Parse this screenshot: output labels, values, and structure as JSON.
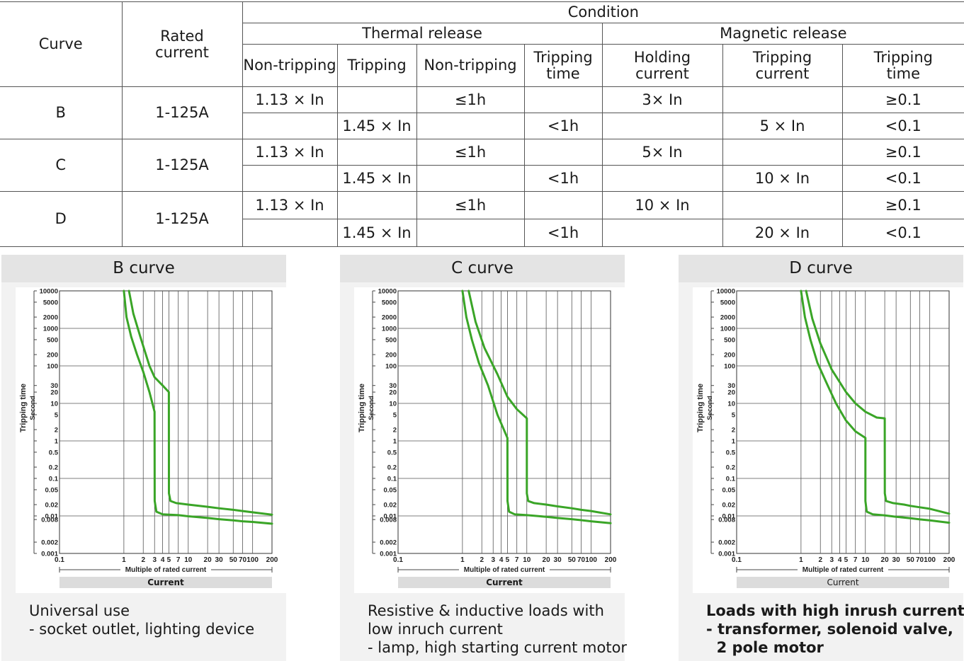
{
  "table": {
    "header": {
      "curve": "Curve",
      "rated_current": [
        "Rated",
        "current"
      ],
      "condition": "Condition",
      "thermal_release": "Thermal release",
      "magnetic_release": "Magnetic release",
      "columns": [
        [
          "Non-tripping"
        ],
        [
          "Tripping"
        ],
        [
          "Non-tripping"
        ],
        [
          "Tripping",
          "time"
        ],
        [
          "Holding",
          "current"
        ],
        [
          "Tripping",
          "current"
        ],
        [
          "Tripping",
          "time"
        ]
      ]
    },
    "rows": [
      {
        "curve": "B",
        "rated": "1-125A",
        "line1": [
          "1.13 × In",
          "",
          "≤1h",
          "",
          "3× In",
          "",
          "≥0.1"
        ],
        "line2": [
          "",
          "1.45 × In",
          "",
          "<1h",
          "",
          "5 × In",
          "<0.1"
        ]
      },
      {
        "curve": "C",
        "rated": "1-125A",
        "line1": [
          "1.13 × In",
          "",
          "≤1h",
          "",
          "5× In",
          "",
          "≥0.1"
        ],
        "line2": [
          "",
          "1.45 × In",
          "",
          "<1h",
          "",
          "10 × In",
          "<0.1"
        ]
      },
      {
        "curve": "D",
        "rated": "1-125A",
        "line1": [
          "1.13 × In",
          "",
          "≤1h",
          "",
          "10 × In",
          "",
          "≥0.1"
        ],
        "line2": [
          "",
          "1.45 × In",
          "",
          "<1h",
          "",
          "20 × In",
          "<0.1"
        ]
      }
    ]
  },
  "panels": [
    {
      "title": "B curve",
      "desc_bold": false,
      "description": [
        "Universal use",
        "- socket outlet, lighting device"
      ]
    },
    {
      "title": "C curve",
      "desc_bold": false,
      "description": [
        "Resistive & inductive loads with",
        "low inruch current",
        "- lamp, high starting current motor"
      ]
    },
    {
      "title": "D curve",
      "desc_bold": true,
      "description": [
        "Loads with high inrush current",
        "- transformer, solenoid valve,",
        "  2 pole motor"
      ]
    }
  ],
  "chart_data": [
    {
      "type": "line",
      "title": "B curve",
      "xlabel": "Multiple of rated current",
      "xlabel2": "Current",
      "ylabel": "Tripping time",
      "ylabel2": "Second",
      "x_scale": "log",
      "y_scale": "log",
      "xlim": [
        0.1,
        200
      ],
      "ylim": [
        0.001,
        10000
      ],
      "x_ticks": [
        "0.1",
        "1",
        "2",
        "3",
        "4",
        "5",
        "7",
        "10",
        "20",
        "30",
        "50",
        "70",
        "100",
        "200"
      ],
      "y_ticks": [
        "10000",
        "5000",
        "2000",
        "1000",
        "500",
        "200",
        "100",
        "30",
        "20",
        "10",
        "5",
        "2",
        "1",
        "0.5",
        "0.2",
        "0.1",
        "0.05",
        "0.02",
        "0.01",
        "0.008",
        "0.002",
        "0.001"
      ],
      "grid": true,
      "color": "#3aa527",
      "series": [
        {
          "x": [
            1.0,
            1.1,
            1.3,
            1.6,
            2.0,
            2.5,
            3.0,
            3.0,
            3.01,
            3.2,
            4.0,
            7.0,
            10,
            20,
            30,
            50,
            70,
            100,
            200
          ],
          "y": [
            10000,
            2000,
            600,
            200,
            70,
            20,
            6,
            6,
            0.025,
            0.013,
            0.011,
            0.0105,
            0.0098,
            0.0088,
            0.0082,
            0.0076,
            0.0072,
            0.0069,
            0.0062
          ]
        },
        {
          "x": [
            1.2,
            1.4,
            1.8,
            2.5,
            3.0,
            4.0,
            5.0,
            5.0,
            5.01,
            5.3,
            6.5,
            10,
            20,
            30,
            50,
            70,
            100,
            200
          ],
          "y": [
            10000,
            2500,
            600,
            100,
            50,
            30,
            20,
            20,
            0.04,
            0.025,
            0.022,
            0.02,
            0.0175,
            0.016,
            0.0145,
            0.0135,
            0.0125,
            0.0108
          ]
        }
      ]
    },
    {
      "type": "line",
      "title": "C curve",
      "xlabel": "Multiple of rated current",
      "xlabel2": "Current",
      "ylabel": "Tripping time",
      "ylabel2": "Second",
      "x_scale": "log",
      "y_scale": "log",
      "xlim": [
        0.1,
        200
      ],
      "ylim": [
        0.001,
        10000
      ],
      "x_ticks": [
        "0.1",
        "1",
        "2",
        "3",
        "4",
        "5",
        "7",
        "10",
        "20",
        "30",
        "50",
        "70",
        "100",
        "200"
      ],
      "y_ticks": [
        "10000",
        "5000",
        "2000",
        "1000",
        "500",
        "200",
        "100",
        "30",
        "20",
        "10",
        "5",
        "2",
        "1",
        "0.5",
        "0.2",
        "0.1",
        "0.05",
        "0.02",
        "0.01",
        "0.008",
        "0.002",
        "0.001"
      ],
      "grid": true,
      "color": "#3aa527",
      "series": [
        {
          "x": [
            1.0,
            1.15,
            1.4,
            1.8,
            2.5,
            3.5,
            5.0,
            5.0,
            5.01,
            5.3,
            6.5,
            10,
            20,
            30,
            50,
            70,
            100,
            200
          ],
          "y": [
            10000,
            2000,
            500,
            120,
            30,
            5,
            1.2,
            1.2,
            0.025,
            0.013,
            0.011,
            0.0105,
            0.0095,
            0.0088,
            0.0082,
            0.0077,
            0.0072,
            0.0064
          ]
        },
        {
          "x": [
            1.25,
            1.6,
            2.2,
            3.5,
            5.0,
            7.0,
            10,
            10,
            10.02,
            10.5,
            13,
            20,
            30,
            50,
            70,
            100,
            200
          ],
          "y": [
            10000,
            1500,
            300,
            60,
            15,
            7,
            4,
            4,
            0.04,
            0.025,
            0.022,
            0.02,
            0.018,
            0.016,
            0.0145,
            0.0135,
            0.011
          ]
        }
      ]
    },
    {
      "type": "line",
      "title": "D curve",
      "xlabel": "Multiple of rated current",
      "xlabel2": "Current",
      "ylabel": "Tripping time",
      "ylabel2": "Second",
      "x_scale": "log",
      "y_scale": "log",
      "xlim": [
        0.1,
        200
      ],
      "ylim": [
        0.001,
        10000
      ],
      "x_ticks": [
        "0.1",
        "1",
        "2",
        "3",
        "4",
        "5",
        "7",
        "10",
        "20",
        "30",
        "50",
        "70",
        "100",
        "200"
      ],
      "y_ticks": [
        "10000",
        "5000",
        "2000",
        "1000",
        "500",
        "200",
        "100",
        "30",
        "20",
        "10",
        "5",
        "2",
        "1",
        "0.5",
        "0.2",
        "0.1",
        "0.05",
        "0.02",
        "0.01",
        "0.008",
        "0.002",
        "0.001"
      ],
      "grid": true,
      "color": "#3aa527",
      "series": [
        {
          "x": [
            1.0,
            1.15,
            1.4,
            1.8,
            2.5,
            3.5,
            5.0,
            7.0,
            10,
            10,
            10.02,
            10.5,
            13,
            20,
            30,
            50,
            70,
            100,
            200
          ],
          "y": [
            10000,
            2000,
            500,
            120,
            35,
            10,
            3.5,
            1.8,
            1.2,
            1.2,
            0.025,
            0.013,
            0.011,
            0.0103,
            0.0095,
            0.0087,
            0.0081,
            0.0076,
            0.0066
          ]
        },
        {
          "x": [
            1.2,
            1.5,
            2.0,
            3.0,
            5.0,
            7.0,
            10,
            15,
            20,
            20,
            20.03,
            21,
            27,
            40,
            50,
            70,
            100,
            200
          ],
          "y": [
            10000,
            1800,
            400,
            80,
            20,
            10,
            6,
            4.2,
            4,
            4,
            0.04,
            0.025,
            0.022,
            0.02,
            0.0185,
            0.017,
            0.0155,
            0.0115
          ]
        }
      ]
    }
  ]
}
